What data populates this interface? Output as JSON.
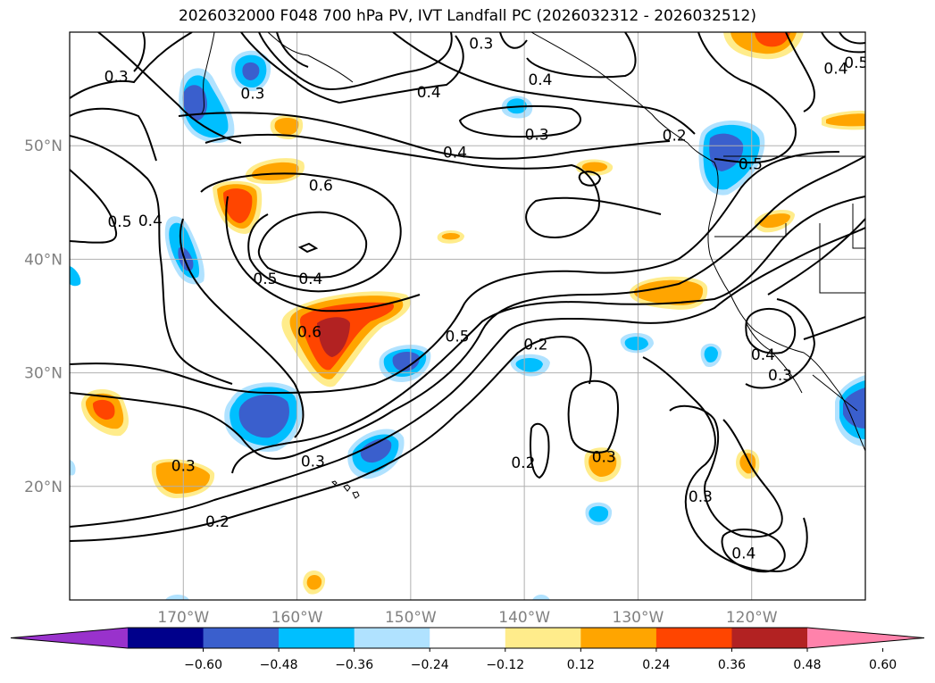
{
  "title": "2026032000 F048 700 hPa PV, IVT Landfall PC (2026032312 - 2026032512)",
  "map": {
    "lon_range": [
      -180,
      -110
    ],
    "lat_range": [
      10,
      60
    ],
    "lon_ticks": [
      {
        "value": -170,
        "label": "170°W"
      },
      {
        "value": -160,
        "label": "160°W"
      },
      {
        "value": -150,
        "label": "150°W"
      },
      {
        "value": -140,
        "label": "140°W"
      },
      {
        "value": -130,
        "label": "130°W"
      },
      {
        "value": -120,
        "label": "120°W"
      }
    ],
    "lat_ticks": [
      {
        "value": 20,
        "label": "20°N"
      },
      {
        "value": 30,
        "label": "30°N"
      },
      {
        "value": 40,
        "label": "40°N"
      },
      {
        "value": 50,
        "label": "50°N"
      }
    ]
  },
  "contour_labels": [
    {
      "text": "0.3",
      "lon": -175.9,
      "lat": 55.8
    },
    {
      "text": "0.3",
      "lon": -163.9,
      "lat": 54.3
    },
    {
      "text": "0.4",
      "lon": -148.4,
      "lat": 54.4
    },
    {
      "text": "0.3",
      "lon": -143.8,
      "lat": 58.7
    },
    {
      "text": "0.4",
      "lon": -138.6,
      "lat": 55.5
    },
    {
      "text": "0.3",
      "lon": -138.9,
      "lat": 50.7
    },
    {
      "text": "0.4",
      "lon": -146.1,
      "lat": 49.1
    },
    {
      "text": "0.6",
      "lon": -157.9,
      "lat": 46.2
    },
    {
      "text": "0.5",
      "lon": -175.6,
      "lat": 43.0
    },
    {
      "text": "0.4",
      "lon": -172.9,
      "lat": 43.1
    },
    {
      "text": "0.5",
      "lon": -162.8,
      "lat": 38.0
    },
    {
      "text": "0.4",
      "lon": -158.8,
      "lat": 38.0
    },
    {
      "text": "0.6",
      "lon": -158.9,
      "lat": 33.3
    },
    {
      "text": "0.5",
      "lon": -145.9,
      "lat": 32.9
    },
    {
      "text": "0.2",
      "lon": -139.0,
      "lat": 32.2
    },
    {
      "text": "0.2",
      "lon": -126.8,
      "lat": 50.6
    },
    {
      "text": "0.5",
      "lon": -120.1,
      "lat": 48.1
    },
    {
      "text": "0.4",
      "lon": -112.6,
      "lat": 56.5
    },
    {
      "text": "0.5",
      "lon": -110.8,
      "lat": 57.0
    },
    {
      "text": "0.4",
      "lon": -119.0,
      "lat": 31.3
    },
    {
      "text": "0.3",
      "lon": -117.5,
      "lat": 29.5
    },
    {
      "text": "0.3",
      "lon": -170.0,
      "lat": 21.5
    },
    {
      "text": "0.3",
      "lon": -158.6,
      "lat": 21.9
    },
    {
      "text": "0.3",
      "lon": -133.0,
      "lat": 22.3
    },
    {
      "text": "0.2",
      "lon": -140.1,
      "lat": 21.8
    },
    {
      "text": "0.2",
      "lon": -167.0,
      "lat": 16.6
    },
    {
      "text": "0.3",
      "lon": -124.5,
      "lat": 18.8
    },
    {
      "text": "0.4",
      "lon": -120.7,
      "lat": 13.8
    }
  ],
  "colorbar": {
    "ticks": [
      "−0.60",
      "−0.48",
      "−0.36",
      "−0.24",
      "−0.12",
      "0.12",
      "0.24",
      "0.36",
      "0.48",
      "0.60"
    ],
    "colors": [
      "#9932CC",
      "#00008B",
      "#3A5FCD",
      "#00BFFF",
      "#B0E2FF",
      "#FFFFFF",
      "#FFEC8B",
      "#FFA500",
      "#FF4500",
      "#B22222",
      "#FF82AB"
    ]
  },
  "shading_colors": {
    "pos1": "#FFEC8B",
    "pos2": "#FFA500",
    "pos3": "#FF4500",
    "pos4": "#B22222",
    "neg1": "#B0E2FF",
    "neg2": "#00BFFF",
    "neg3": "#3A5FCD"
  }
}
